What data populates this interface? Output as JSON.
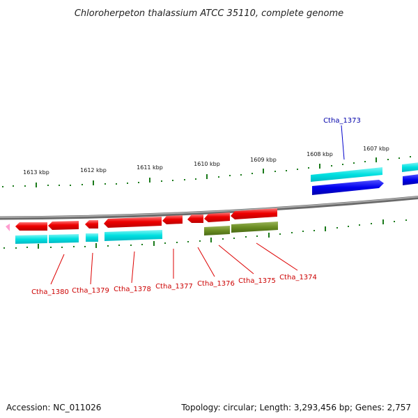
{
  "title": "Chloroherpeton thalassium ATCC 35110, complete genome",
  "scale_labels": [
    "1613 kbp",
    "1612 kbp",
    "1611 kbp",
    "1610 kbp",
    "1609 kbp",
    "1608 kbp",
    "1607 kbp"
  ],
  "gene_labels": {
    "top": [
      "Ctha_1373"
    ],
    "bottom": [
      "Ctha_1380",
      "Ctha_1379",
      "Ctha_1378",
      "Ctha_1377",
      "Ctha_1376",
      "Ctha_1375",
      "Ctha_1374"
    ]
  },
  "footer": {
    "accession": "Accession: NC_011026",
    "topology": "Topology: circular; Length: 3,293,456 bp; Genes: 2,757"
  },
  "colors": {
    "cds": "#ff0000",
    "cds_alt": "#6b8e23",
    "gene_track": "#00e5e5",
    "top_gene": "#0000ee",
    "label_bottom": "#cc0000",
    "label_top": "#0000aa",
    "ticks": "#1a7a1a",
    "backbone": "#808080"
  }
}
